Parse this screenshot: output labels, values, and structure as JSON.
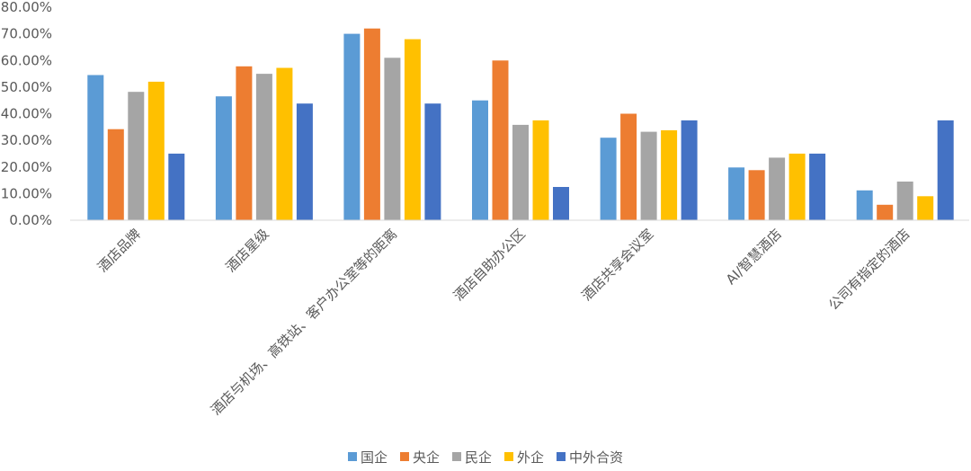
{
  "chart_data": {
    "type": "bar",
    "categories": [
      "酒店品牌",
      "酒店星级",
      "酒店与机场、高铁站、客户办公室等的距离",
      "酒店自助办公区",
      "酒店共享会议室",
      "AI/智慧酒店",
      "公司有指定的酒店"
    ],
    "series": [
      {
        "name": "国企",
        "color": "#5B9BD5",
        "values": [
          54.5,
          46.5,
          70.0,
          45.0,
          31.0,
          19.8,
          11.2
        ]
      },
      {
        "name": "央企",
        "color": "#ED7D31",
        "values": [
          34.2,
          57.8,
          72.0,
          60.0,
          40.0,
          18.8,
          5.8
        ]
      },
      {
        "name": "民企",
        "color": "#A5A5A5",
        "values": [
          48.2,
          55.0,
          61.0,
          35.8,
          33.2,
          23.5,
          14.5
        ]
      },
      {
        "name": "外企",
        "color": "#FFC000",
        "values": [
          52.0,
          57.2,
          68.0,
          37.5,
          33.8,
          25.0,
          9.0
        ]
      },
      {
        "name": "中外合资",
        "color": "#4472C4",
        "values": [
          25.0,
          43.8,
          43.8,
          12.5,
          37.5,
          25.0,
          37.5
        ]
      }
    ],
    "yticks": [
      "0.00%",
      "10.00%",
      "20.00%",
      "30.00%",
      "40.00%",
      "50.00%",
      "60.00%",
      "70.00%",
      "80.00%"
    ],
    "ylim": [
      0,
      80
    ],
    "legend_position": "bottom",
    "grid": false
  }
}
